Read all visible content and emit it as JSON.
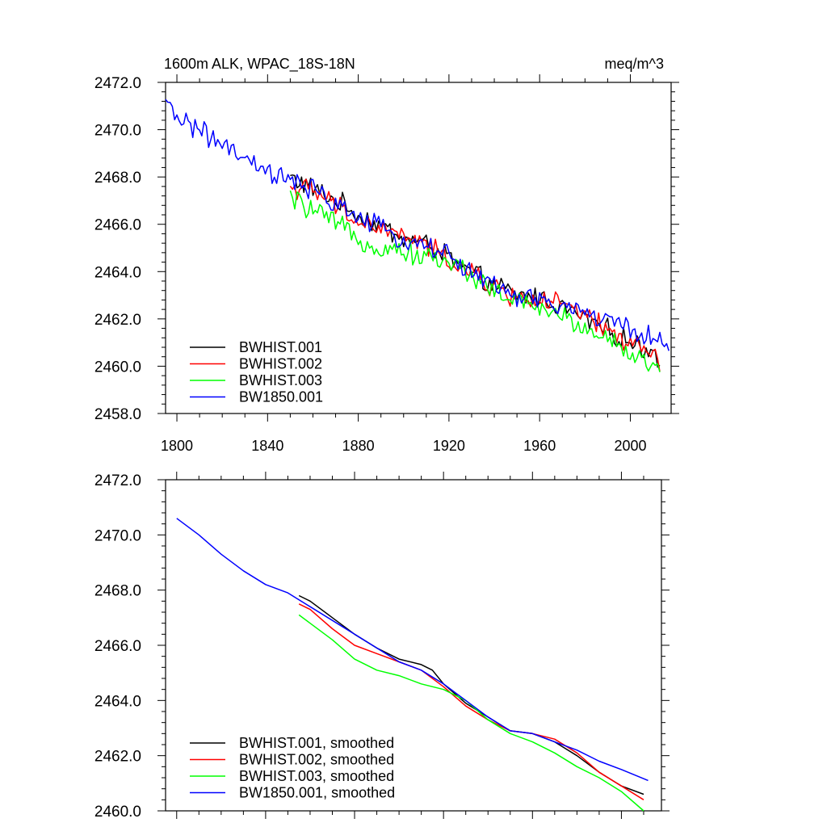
{
  "chart_data": [
    {
      "type": "line",
      "title": "1600m ALK, WPAC_18S-18N",
      "units": "meq/m^3",
      "xlabel": "",
      "ylabel": "",
      "xlim": [
        1795,
        2018
      ],
      "ylim": [
        2458.0,
        2472.0
      ],
      "xticks": [
        1800,
        1840,
        1880,
        1920,
        1960,
        2000
      ],
      "xtick_labels": [
        "1800",
        "1840",
        "1880",
        "1920",
        "1960",
        "2000"
      ],
      "yticks": [
        2458.0,
        2460.0,
        2462.0,
        2464.0,
        2466.0,
        2468.0,
        2470.0,
        2472.0
      ],
      "ytick_labels": [
        "2458.0",
        "2460.0",
        "2462.0",
        "2464.0",
        "2466.0",
        "2468.0",
        "2470.0",
        "2472.0"
      ],
      "legend_position": "bottom-left",
      "series": [
        {
          "name": "BWHIST.001",
          "color": "#000000",
          "noisy": true,
          "x": [
            1850,
            1860,
            1870,
            1880,
            1890,
            1900,
            1910,
            1920,
            1930,
            1940,
            1950,
            1960,
            1970,
            1980,
            1990,
            2000,
            2010,
            2013
          ],
          "y": [
            2468.0,
            2467.5,
            2467.0,
            2466.4,
            2465.9,
            2465.4,
            2465.2,
            2464.6,
            2463.9,
            2463.4,
            2463.0,
            2462.9,
            2462.5,
            2462.0,
            2461.5,
            2461.0,
            2460.6,
            2460.4
          ]
        },
        {
          "name": "BWHIST.002",
          "color": "#ff0000",
          "noisy": true,
          "x": [
            1850,
            1860,
            1870,
            1880,
            1890,
            1900,
            1910,
            1920,
            1930,
            1940,
            1950,
            1960,
            1970,
            1980,
            1990,
            2000,
            2010,
            2013
          ],
          "y": [
            2467.6,
            2467.4,
            2466.8,
            2466.1,
            2465.8,
            2465.5,
            2465.1,
            2464.5,
            2463.9,
            2463.3,
            2462.9,
            2462.8,
            2462.6,
            2462.1,
            2461.5,
            2461.0,
            2460.5,
            2460.1
          ]
        },
        {
          "name": "BWHIST.003",
          "color": "#00ff00",
          "noisy": true,
          "x": [
            1850,
            1860,
            1870,
            1880,
            1890,
            1900,
            1910,
            1920,
            1930,
            1940,
            1950,
            1960,
            1970,
            1980,
            1990,
            2000,
            2010,
            2013
          ],
          "y": [
            2467.1,
            2466.6,
            2466.0,
            2465.4,
            2465.0,
            2464.9,
            2464.6,
            2464.4,
            2463.9,
            2463.2,
            2462.7,
            2462.5,
            2462.1,
            2461.6,
            2461.2,
            2460.6,
            2459.9,
            2459.7
          ]
        },
        {
          "name": "BW1850.001",
          "color": "#0000ff",
          "noisy": true,
          "x": [
            1795,
            1800,
            1810,
            1820,
            1830,
            1840,
            1850,
            1860,
            1870,
            1880,
            1890,
            1900,
            1910,
            1920,
            1930,
            1940,
            1950,
            1960,
            1970,
            1980,
            1990,
            2000,
            2010,
            2017
          ],
          "y": [
            2471.0,
            2470.6,
            2470.0,
            2469.3,
            2468.7,
            2468.2,
            2467.8,
            2467.4,
            2466.9,
            2466.3,
            2465.8,
            2465.3,
            2465.2,
            2464.6,
            2464.0,
            2463.4,
            2462.9,
            2462.8,
            2462.5,
            2462.3,
            2461.9,
            2461.6,
            2461.2,
            2460.8
          ]
        }
      ]
    },
    {
      "type": "line",
      "title": "",
      "xlabel": "",
      "ylabel": "",
      "xlim": [
        1795,
        2018
      ],
      "ylim": [
        2460.0,
        2472.0
      ],
      "xticks": [
        1800,
        1840,
        1880,
        1920,
        1960,
        2000
      ],
      "xtick_labels": [
        "",
        "",
        "",
        "",
        "",
        ""
      ],
      "yticks": [
        2460.0,
        2462.0,
        2464.0,
        2466.0,
        2468.0,
        2470.0,
        2472.0
      ],
      "ytick_labels": [
        "2460.0",
        "2462.0",
        "2464.0",
        "2466.0",
        "2468.0",
        "2470.0",
        "2472.0"
      ],
      "legend_position": "bottom-left",
      "series": [
        {
          "name": "BWHIST.001, smoothed",
          "color": "#000000",
          "noisy": false,
          "x": [
            1855,
            1860,
            1870,
            1880,
            1890,
            1900,
            1910,
            1915,
            1920,
            1930,
            1940,
            1950,
            1960,
            1970,
            1980,
            1990,
            2000,
            2010
          ],
          "y": [
            2467.8,
            2467.6,
            2467.0,
            2466.4,
            2465.9,
            2465.5,
            2465.3,
            2465.1,
            2464.6,
            2463.9,
            2463.4,
            2462.9,
            2462.8,
            2462.5,
            2462.0,
            2461.4,
            2460.9,
            2460.6
          ]
        },
        {
          "name": "BWHIST.002, smoothed",
          "color": "#ff0000",
          "noisy": false,
          "x": [
            1855,
            1860,
            1870,
            1880,
            1890,
            1900,
            1910,
            1920,
            1930,
            1940,
            1950,
            1960,
            1970,
            1980,
            1990,
            2000,
            2010
          ],
          "y": [
            2467.5,
            2467.3,
            2466.6,
            2466.0,
            2465.7,
            2465.4,
            2465.1,
            2464.5,
            2463.8,
            2463.3,
            2462.9,
            2462.8,
            2462.6,
            2462.1,
            2461.4,
            2460.9,
            2460.4
          ]
        },
        {
          "name": "BWHIST.003, smoothed",
          "color": "#00ff00",
          "noisy": false,
          "x": [
            1855,
            1860,
            1870,
            1880,
            1890,
            1900,
            1910,
            1920,
            1930,
            1940,
            1950,
            1960,
            1970,
            1980,
            1990,
            2000,
            2010
          ],
          "y": [
            2467.1,
            2466.8,
            2466.2,
            2465.5,
            2465.1,
            2464.9,
            2464.6,
            2464.4,
            2464.0,
            2463.3,
            2462.8,
            2462.5,
            2462.1,
            2461.6,
            2461.2,
            2460.7,
            2460.0
          ]
        },
        {
          "name": "BW1850.001, smoothed",
          "color": "#0000ff",
          "noisy": false,
          "x": [
            1800,
            1810,
            1820,
            1830,
            1840,
            1850,
            1860,
            1870,
            1880,
            1890,
            1900,
            1910,
            1920,
            1930,
            1940,
            1950,
            1960,
            1970,
            1980,
            1990,
            2000,
            2012
          ],
          "y": [
            2470.6,
            2470.0,
            2469.3,
            2468.7,
            2468.2,
            2467.9,
            2467.4,
            2466.9,
            2466.4,
            2465.9,
            2465.4,
            2465.1,
            2464.6,
            2464.0,
            2463.4,
            2462.9,
            2462.8,
            2462.5,
            2462.2,
            2461.8,
            2461.5,
            2461.1
          ]
        }
      ]
    }
  ]
}
